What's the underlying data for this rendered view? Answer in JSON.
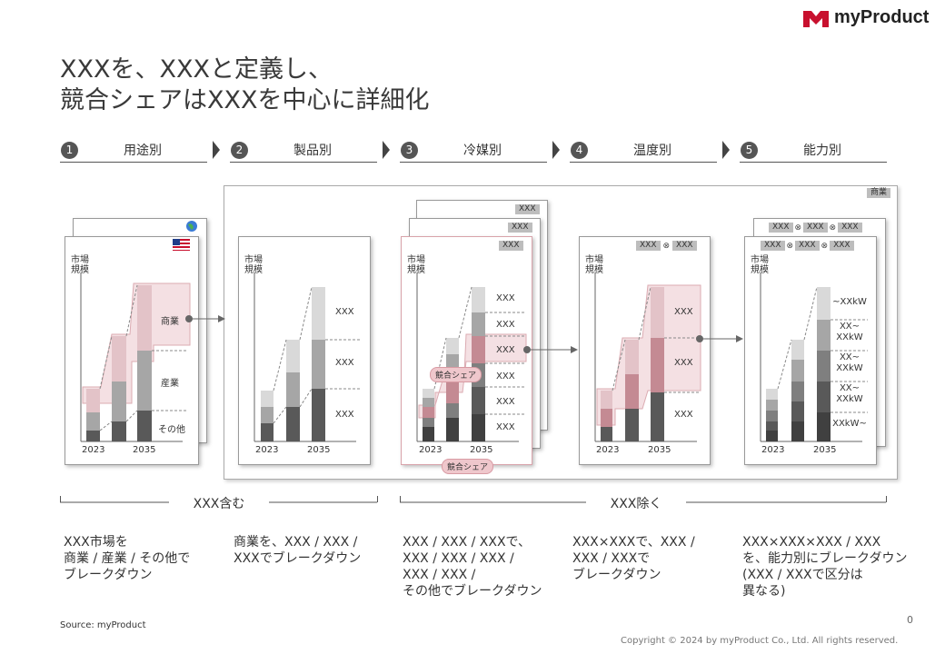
{
  "brand": {
    "name": "myProduct"
  },
  "title": "XXXを、XXXと定義し、\n競合シェアはXXXを中心に詳細化",
  "steps": [
    {
      "num": "1",
      "label": "用途別"
    },
    {
      "num": "2",
      "label": "製品別"
    },
    {
      "num": "3",
      "label": "冷媒別"
    },
    {
      "num": "4",
      "label": "温度別"
    },
    {
      "num": "5",
      "label": "能力別"
    }
  ],
  "panel_common": {
    "axis_title": "市場\n規模",
    "year_start": "2023",
    "year_end": "2035"
  },
  "panel1": {
    "labels": [
      "商業",
      "産業",
      "その他"
    ]
  },
  "panel2": {
    "labels": [
      "XXX",
      "XXX",
      "XXX"
    ]
  },
  "panel3": {
    "tags": [
      "XXX",
      "XXX",
      "XXX"
    ],
    "labels": [
      "XXX",
      "XXX",
      "XXX",
      "XXX",
      "XXX",
      "XXX"
    ],
    "badge": "競合シェア"
  },
  "panel4": {
    "tag_left": "XXX",
    "tag_right": "XXX",
    "labels": [
      "XXX",
      "XXX",
      "XXX"
    ]
  },
  "panel5": {
    "group_tag": "商業",
    "tags": [
      "XXX",
      "XXX",
      "XXX"
    ],
    "labels": [
      "~XXkW",
      "XX~\nXXkW",
      "XX~\nXXkW",
      "XX~\nXXkW",
      "XXkW~"
    ]
  },
  "brackets": {
    "left": "XXX含む",
    "right": "XXX除く"
  },
  "descriptions": [
    "XXX市場を\n商業 / 産業 / その他で\nブレークダウン",
    "商業を、XXX / XXX /\nXXXでブレークダウン",
    "XXX / XXX / XXXで、\nXXX / XXX / XXX /\nXXX / XXX /\nその他でブレークダウン",
    "XXX×XXXで、XXX /\nXXX / XXXで\nブレークダウン",
    "XXX×XXX×XXX / XXX\nを、能力別にブレークダウン\n(XXX / XXXで区分は\n異なる)"
  ],
  "source": "Source: myProduct",
  "page_number": "0",
  "copyright": "Copyright © 2024 by myProduct Co., Ltd.  All rights reserved.",
  "colors": {
    "accent": "#c8102e",
    "pink_fill": "#f3dde0",
    "pink_border": "#d8a3aa"
  }
}
